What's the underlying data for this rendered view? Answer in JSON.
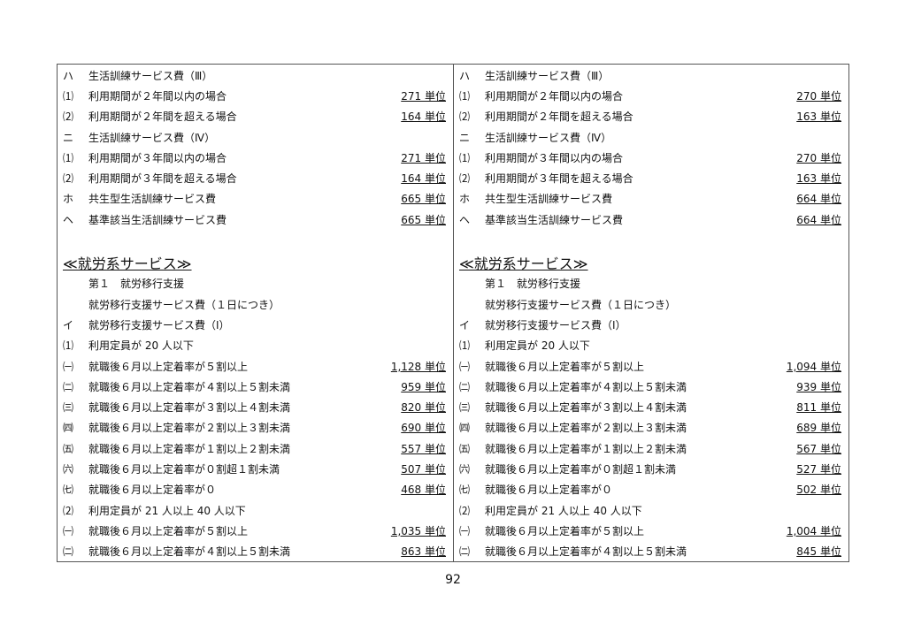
{
  "columns": [
    {
      "rows": [
        {
          "mark": "ハ",
          "text": "生活訓練サービス費（Ⅲ）",
          "value": ""
        },
        {
          "mark": "⑴",
          "text": "利用期間が２年間以内の場合",
          "value": "271 単位"
        },
        {
          "mark": "⑵",
          "text": "利用期間が２年間を超える場合",
          "value": "164 単位"
        },
        {
          "mark": "ニ",
          "text": "生活訓練サービス費（Ⅳ）",
          "value": ""
        },
        {
          "mark": "⑴",
          "text": "利用期間が３年間以内の場合",
          "value": "271 単位"
        },
        {
          "mark": "⑵",
          "text": "利用期間が３年間を超える場合",
          "value": "164 単位"
        },
        {
          "mark": "ホ",
          "text": "共生型生活訓練サービス費",
          "value": "665 単位"
        },
        {
          "mark": "ヘ",
          "text": "基準該当生活訓練サービス費",
          "value": "665 単位"
        },
        {
          "blank": true
        },
        {
          "heading": "≪就労系サービス≫"
        },
        {
          "mark": "",
          "text": "第１　就労移行支援",
          "value": ""
        },
        {
          "mark": "",
          "text": "就労移行支援サービス費（１日につき）",
          "value": ""
        },
        {
          "mark": "イ",
          "text": "就労移行支援サービス費（Ⅰ）",
          "value": ""
        },
        {
          "mark": "⑴",
          "text": "利用定員が 20 人以下",
          "value": ""
        },
        {
          "mark": "㈠",
          "text": "就職後６月以上定着率が５割以上",
          "value": "1,128 単位"
        },
        {
          "mark": "㈡",
          "text": "就職後６月以上定着率が４割以上５割未満",
          "value": "959 単位"
        },
        {
          "mark": "㈢",
          "text": "就職後６月以上定着率が３割以上４割未満",
          "value": "820 単位"
        },
        {
          "mark": "㈣",
          "text": "就職後６月以上定着率が２割以上３割未満",
          "value": "690 単位"
        },
        {
          "mark": "㈤",
          "text": "就職後６月以上定着率が１割以上２割未満",
          "value": "557 単位"
        },
        {
          "mark": "㈥",
          "text": "就職後６月以上定着率が０割超１割未満",
          "value": "507 単位"
        },
        {
          "mark": "㈦",
          "text": "就職後６月以上定着率が０",
          "value": "468 単位"
        },
        {
          "mark": "⑵",
          "text": "利用定員が 21 人以上 40 人以下",
          "value": ""
        },
        {
          "mark": "㈠",
          "text": "就職後６月以上定着率が５割以上",
          "value": "1,035 単位"
        },
        {
          "mark": "㈡",
          "text": "就職後６月以上定着率が４割以上５割未満",
          "value": "863 単位"
        }
      ]
    },
    {
      "rows": [
        {
          "mark": "ハ",
          "text": "生活訓練サービス費（Ⅲ）",
          "value": ""
        },
        {
          "mark": "⑴",
          "text": "利用期間が２年間以内の場合",
          "value": "270 単位"
        },
        {
          "mark": "⑵",
          "text": "利用期間が２年間を超える場合",
          "value": "163 単位"
        },
        {
          "mark": "ニ",
          "text": "生活訓練サービス費（Ⅳ）",
          "value": ""
        },
        {
          "mark": "⑴",
          "text": "利用期間が３年間以内の場合",
          "value": "270 単位"
        },
        {
          "mark": "⑵",
          "text": "利用期間が３年間を超える場合",
          "value": "163 単位"
        },
        {
          "mark": "ホ",
          "text": "共生型生活訓練サービス費",
          "value": "664 単位"
        },
        {
          "mark": "ヘ",
          "text": "基準該当生活訓練サービス費",
          "value": "664 単位"
        },
        {
          "blank": true
        },
        {
          "heading": "≪就労系サービス≫"
        },
        {
          "mark": "",
          "text": "第１　就労移行支援",
          "value": ""
        },
        {
          "mark": "",
          "text": "就労移行支援サービス費（１日につき）",
          "value": ""
        },
        {
          "mark": "イ",
          "text": "就労移行支援サービス費（Ⅰ）",
          "value": ""
        },
        {
          "mark": "⑴",
          "text": "利用定員が 20 人以下",
          "value": ""
        },
        {
          "mark": "㈠",
          "text": "就職後６月以上定着率が５割以上",
          "value": "1,094 単位"
        },
        {
          "mark": "㈡",
          "text": "就職後６月以上定着率が４割以上５割未満",
          "value": "939 単位"
        },
        {
          "mark": "㈢",
          "text": "就職後６月以上定着率が３割以上４割未満",
          "value": "811 単位"
        },
        {
          "mark": "㈣",
          "text": "就職後６月以上定着率が２割以上３割未満",
          "value": "689 単位"
        },
        {
          "mark": "㈤",
          "text": "就職後６月以上定着率が１割以上２割未満",
          "value": "567 単位"
        },
        {
          "mark": "㈥",
          "text": "就職後６月以上定着率が０割超１割未満",
          "value": "527 単位"
        },
        {
          "mark": "㈦",
          "text": "就職後６月以上定着率が０",
          "value": "502 単位"
        },
        {
          "mark": "⑵",
          "text": "利用定員が 21 人以上 40 人以下",
          "value": ""
        },
        {
          "mark": "㈠",
          "text": "就職後６月以上定着率が５割以上",
          "value": "1,004 単位"
        },
        {
          "mark": "㈡",
          "text": "就職後６月以上定着率が４割以上５割未満",
          "value": "845 単位"
        }
      ]
    }
  ],
  "page_number": "92"
}
